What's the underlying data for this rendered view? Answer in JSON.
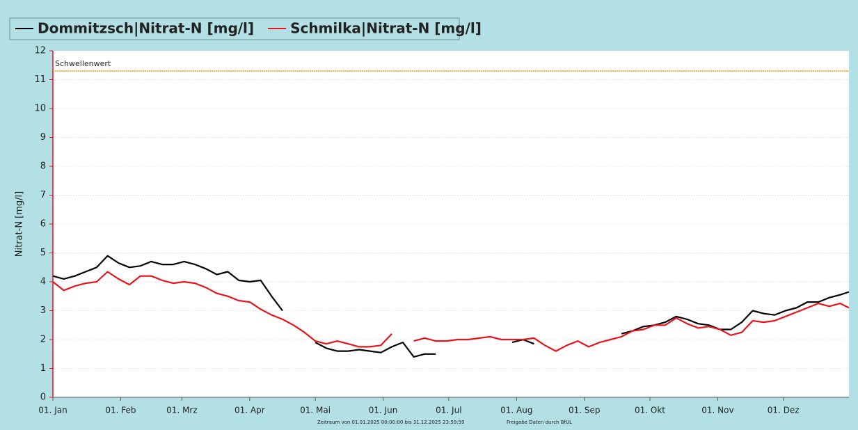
{
  "chart_data": {
    "type": "line",
    "y_label": "Nitrat-N [mg/l]",
    "footer": [
      "Zeitraum  von 01.01.2025 00:00:00  bis  31.12.2025 23:59:59",
      "Freigabe Daten durch BfUL"
    ],
    "threshold": {
      "label": "Schwellenwert",
      "value": 11.3,
      "color": "#ff9900"
    },
    "xlim": [
      "2025-01-01",
      "2025-12-31"
    ],
    "xticks": [
      {
        "value": "2025-01-01",
        "label": "01. Jan"
      },
      {
        "value": "2025-02-01",
        "label": "01. Feb"
      },
      {
        "value": "2025-03-01",
        "label": "01. Mrz"
      },
      {
        "value": "2025-04-01",
        "label": "01. Apr"
      },
      {
        "value": "2025-05-01",
        "label": "01. Mai"
      },
      {
        "value": "2025-06-01",
        "label": "01. Jun"
      },
      {
        "value": "2025-07-01",
        "label": "01. Jul"
      },
      {
        "value": "2025-08-01",
        "label": "01. Aug"
      },
      {
        "value": "2025-09-01",
        "label": "01. Sep"
      },
      {
        "value": "2025-10-01",
        "label": "01. Okt"
      },
      {
        "value": "2025-11-01",
        "label": "01. Nov"
      },
      {
        "value": "2025-12-01",
        "label": "01. Dez"
      }
    ],
    "ylim": [
      0,
      12
    ],
    "yticks": [
      0,
      1,
      2,
      3,
      4,
      5,
      6,
      7,
      8,
      9,
      10,
      11,
      12
    ],
    "grid": true,
    "x": [
      "2025-01-01",
      "2025-01-06",
      "2025-01-11",
      "2025-01-16",
      "2025-01-21",
      "2025-01-26",
      "2025-01-31",
      "2025-02-05",
      "2025-02-10",
      "2025-02-15",
      "2025-02-20",
      "2025-02-25",
      "2025-03-02",
      "2025-03-07",
      "2025-03-12",
      "2025-03-17",
      "2025-03-22",
      "2025-03-27",
      "2025-04-01",
      "2025-04-06",
      "2025-04-11",
      "2025-04-16",
      "2025-04-21",
      "2025-04-26",
      "2025-05-01",
      "2025-05-06",
      "2025-05-11",
      "2025-05-16",
      "2025-05-21",
      "2025-05-26",
      "2025-05-31",
      "2025-06-05",
      "2025-06-10",
      "2025-06-15",
      "2025-06-20",
      "2025-06-25",
      "2025-06-30",
      "2025-07-05",
      "2025-07-10",
      "2025-07-15",
      "2025-07-20",
      "2025-07-25",
      "2025-07-30",
      "2025-08-04",
      "2025-08-09",
      "2025-08-14",
      "2025-08-19",
      "2025-08-24",
      "2025-08-29",
      "2025-09-03",
      "2025-09-08",
      "2025-09-13",
      "2025-09-18",
      "2025-09-23",
      "2025-09-28",
      "2025-10-03",
      "2025-10-08",
      "2025-10-13",
      "2025-10-18",
      "2025-10-23",
      "2025-10-28",
      "2025-11-02",
      "2025-11-07",
      "2025-11-12",
      "2025-11-17",
      "2025-11-22",
      "2025-11-27",
      "2025-12-02",
      "2025-12-07",
      "2025-12-12",
      "2025-12-17",
      "2025-12-22",
      "2025-12-27",
      "2025-12-31"
    ],
    "series": [
      {
        "name": "Dommitzsch|Nitrat-N [mg/l]",
        "color": "#000000",
        "values": [
          4.2,
          4.1,
          4.2,
          4.35,
          4.5,
          4.9,
          4.65,
          4.5,
          4.55,
          4.7,
          4.6,
          4.6,
          4.7,
          4.6,
          4.45,
          4.25,
          4.35,
          4.05,
          4.0,
          4.05,
          3.5,
          3.0,
          null,
          null,
          1.9,
          1.7,
          1.6,
          1.6,
          1.65,
          1.6,
          1.55,
          1.75,
          1.9,
          1.4,
          1.5,
          1.5,
          null,
          null,
          null,
          null,
          null,
          null,
          1.9,
          2.0,
          1.85,
          null,
          null,
          null,
          null,
          null,
          null,
          null,
          2.2,
          2.3,
          2.45,
          2.5,
          2.6,
          2.8,
          2.7,
          2.55,
          2.5,
          2.35,
          2.35,
          2.6,
          3.0,
          2.9,
          2.85,
          3.0,
          3.1,
          3.3,
          3.3,
          3.45,
          3.55,
          3.65
        ]
      },
      {
        "name": "Schmilka|Nitrat-N [mg/l]",
        "color": "#e8131b",
        "values": [
          4.0,
          3.7,
          3.85,
          3.95,
          4.0,
          4.35,
          4.1,
          3.9,
          4.2,
          4.2,
          4.05,
          3.95,
          4.0,
          3.95,
          3.8,
          3.6,
          3.5,
          3.35,
          3.3,
          3.05,
          2.85,
          2.7,
          2.5,
          2.25,
          1.95,
          1.85,
          1.95,
          1.85,
          1.75,
          1.75,
          1.8,
          2.2,
          null,
          1.95,
          2.05,
          1.95,
          1.95,
          2.0,
          2.0,
          2.05,
          2.1,
          2.0,
          2.0,
          2.0,
          2.05,
          1.8,
          1.6,
          1.8,
          1.95,
          1.75,
          1.9,
          2.0,
          2.1,
          2.3,
          2.35,
          2.5,
          2.5,
          2.75,
          2.55,
          2.4,
          2.45,
          2.35,
          2.15,
          2.25,
          2.65,
          2.6,
          2.65,
          2.8,
          2.95,
          3.1,
          3.25,
          3.15,
          3.25,
          3.1
        ]
      }
    ]
  }
}
